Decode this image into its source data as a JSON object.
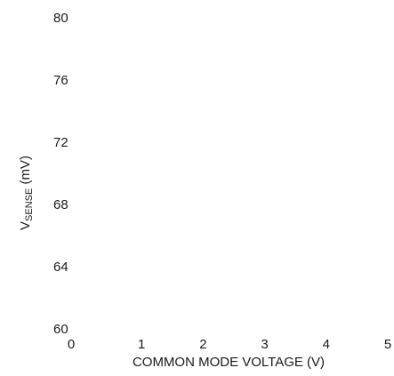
{
  "chart_data": {
    "type": "line",
    "xlabel": "COMMON MODE VOLTAGE (V)",
    "ylabel": {
      "prefix": "V",
      "subscript": "SENSE",
      "suffix": " (mV)"
    },
    "xlim": [
      0,
      5
    ],
    "ylim": [
      60,
      80
    ],
    "xticks": [
      {
        "value": 0,
        "label": "0"
      },
      {
        "value": 1,
        "label": "1"
      },
      {
        "value": 2,
        "label": "2"
      },
      {
        "value": 3,
        "label": "3"
      },
      {
        "value": 4,
        "label": "4"
      },
      {
        "value": 5,
        "label": "5"
      }
    ],
    "yticks": [
      {
        "value": 80,
        "label": "80"
      },
      {
        "value": 76,
        "label": "76"
      },
      {
        "value": 72,
        "label": "72"
      },
      {
        "value": 68,
        "label": "68"
      },
      {
        "value": 64,
        "label": "64"
      },
      {
        "value": 60,
        "label": "60"
      }
    ],
    "grid": false,
    "series": []
  }
}
